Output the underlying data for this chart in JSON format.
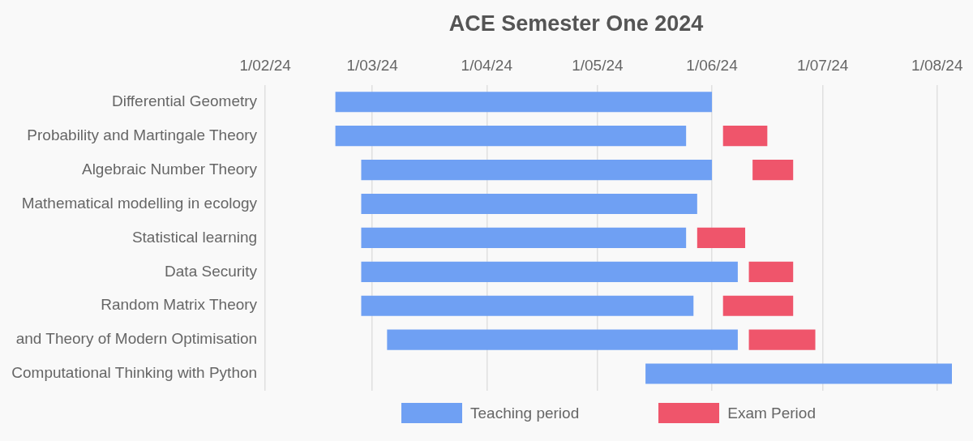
{
  "chart_data": {
    "type": "bar",
    "orientation": "horizontal",
    "title": "ACE Semester One 2024",
    "categories": [
      "Differential Geometry",
      "Probability and Martingale Theory",
      "Algebraic Number Theory",
      "Mathematical modelling in ecology",
      "Statistical learning",
      "Data Security",
      "Random Matrix Theory",
      "and Theory of Modern Optimisation",
      "Computational Thinking with Python"
    ],
    "series": [
      {
        "name": "Teaching period",
        "color": "#6fa0f3",
        "base": [
          19773,
          19773,
          19780,
          19780,
          19780,
          19780,
          19780,
          19787,
          19857
        ],
        "values": [
          102,
          95,
          95,
          91,
          88,
          102,
          90,
          95,
          83
        ]
      },
      {
        "name": "Exam Period",
        "color": "#ef556b",
        "base": [
          null,
          19878,
          19886,
          null,
          19871,
          19885,
          19878,
          19885,
          null
        ],
        "values": [
          null,
          12,
          11,
          null,
          13,
          12,
          19,
          18,
          null
        ]
      }
    ],
    "xlim": [
      "2024-02-01",
      "2024-08-05"
    ],
    "xticks": [
      {
        "value": "2024-02-01",
        "label": "1/02/24"
      },
      {
        "value": "2024-03-01",
        "label": "1/03/24"
      },
      {
        "value": "2024-04-01",
        "label": "1/04/24"
      },
      {
        "value": "2024-05-01",
        "label": "1/05/24"
      },
      {
        "value": "2024-06-01",
        "label": "1/06/24"
      },
      {
        "value": "2024-07-01",
        "label": "1/07/24"
      },
      {
        "value": "2024-08-01",
        "label": "1/08/24"
      }
    ],
    "grid": "x",
    "legend": "bottom"
  }
}
